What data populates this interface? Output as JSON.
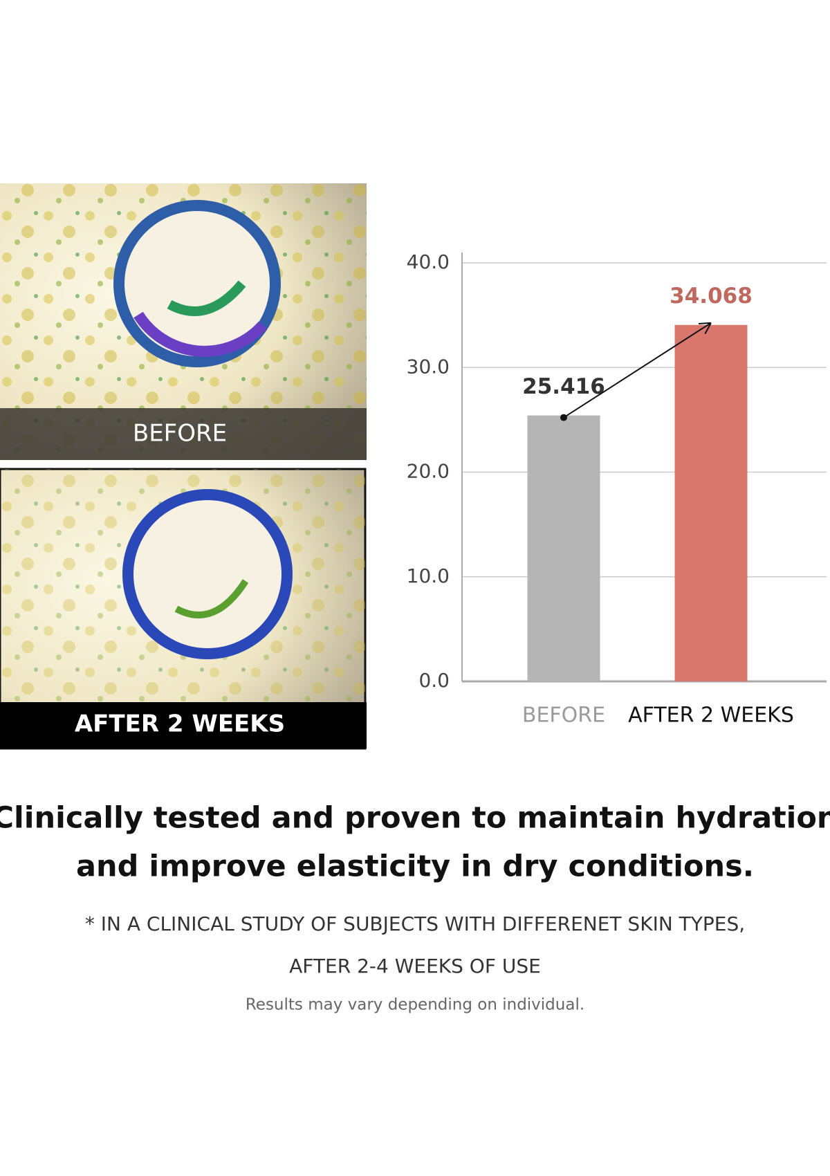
{
  "photos": [
    {
      "caption": "BEFORE"
    },
    {
      "caption": "AFTER 2 WEEKS"
    }
  ],
  "chart_data": {
    "type": "bar",
    "categories": [
      "BEFORE",
      "AFTER 2 WEEKS"
    ],
    "category_colors": [
      "#9a9a9a",
      "#111111"
    ],
    "values": [
      25.416,
      34.068
    ],
    "colors": [
      "#b5b5b5",
      "#d9776c"
    ],
    "value_label_colors": [
      "#333333",
      "#c0675e"
    ],
    "ylim": [
      0,
      40
    ],
    "yticks": [
      {
        "value": 0,
        "label": "0.0"
      },
      {
        "value": 10,
        "label": "10.0"
      },
      {
        "value": 20,
        "label": "20.0"
      },
      {
        "value": 30,
        "label": "30.0"
      },
      {
        "value": 40,
        "label": "40.0"
      }
    ],
    "grid": true
  },
  "headline": [
    "Clinically tested and proven to maintain hydration",
    "and improve elasticity in dry conditions."
  ],
  "footnote": [
    "* IN A CLINICAL STUDY OF SUBJECTS WITH DIFFERENET SKIN TYPES,",
    "AFTER 2-4 WEEKS OF USE"
  ],
  "disclaimer": "Results may vary depending on individual."
}
